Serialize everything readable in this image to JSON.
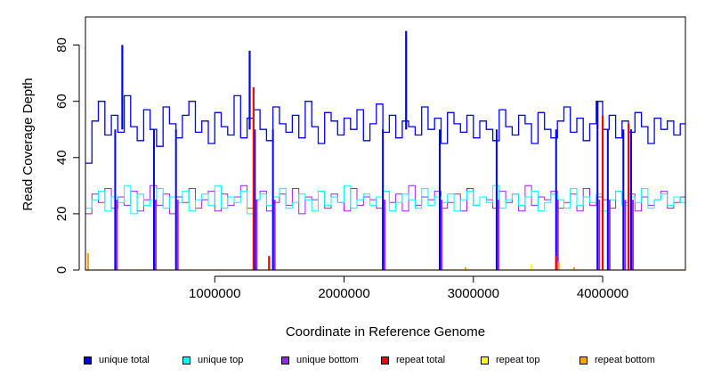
{
  "chart_data": {
    "type": "line",
    "title": "",
    "xlabel": "Coordinate in Reference Genome",
    "ylabel": "Read Coverage Depth",
    "xlim": [
      0,
      4640000
    ],
    "ylim": [
      0,
      90
    ],
    "x_ticks": [
      1000000,
      2000000,
      3000000,
      4000000
    ],
    "x_tick_labels": [
      "1000000",
      "2000000",
      "3000000",
      "4000000"
    ],
    "y_ticks": [
      0,
      20,
      40,
      60,
      80
    ],
    "y_tick_labels": [
      "0",
      "20",
      "40",
      "60",
      "80"
    ],
    "grid": false,
    "legend_position": "bottom",
    "series": [
      {
        "name": "unique total",
        "color": "#0000ff",
        "baseline": 50,
        "x": [
          0,
          50000,
          100000,
          150000,
          200000,
          250000,
          300000,
          350000,
          400000,
          450000,
          500000,
          550000,
          600000,
          650000,
          700000,
          750000,
          800000,
          850000,
          900000,
          950000,
          1000000,
          1050000,
          1100000,
          1150000,
          1200000,
          1250000,
          1300000,
          1350000,
          1400000,
          1450000,
          1500000,
          1550000,
          1600000,
          1650000,
          1700000,
          1750000,
          1800000,
          1850000,
          1900000,
          1950000,
          2000000,
          2050000,
          2100000,
          2150000,
          2200000,
          2250000,
          2300000,
          2350000,
          2400000,
          2450000,
          2500000,
          2550000,
          2600000,
          2650000,
          2700000,
          2750000,
          2800000,
          2850000,
          2900000,
          2950000,
          3000000,
          3050000,
          3100000,
          3150000,
          3200000,
          3250000,
          3300000,
          3350000,
          3400000,
          3450000,
          3500000,
          3550000,
          3600000,
          3650000,
          3700000,
          3750000,
          3800000,
          3850000,
          3900000,
          3950000,
          4000000,
          4050000,
          4100000,
          4150000,
          4200000,
          4250000,
          4300000,
          4350000,
          4400000,
          4450000,
          4500000,
          4550000,
          4600000
        ],
        "values": [
          38,
          53,
          60,
          48,
          55,
          49,
          62,
          51,
          46,
          57,
          50,
          44,
          58,
          52,
          47,
          55,
          60,
          49,
          53,
          45,
          56,
          51,
          48,
          62,
          47,
          54,
          57,
          50,
          46,
          58,
          52,
          49,
          55,
          47,
          60,
          51,
          45,
          56,
          53,
          48,
          54,
          50,
          57,
          46,
          52,
          59,
          49,
          55,
          47,
          53,
          51,
          48,
          58,
          50,
          54,
          45,
          56,
          52,
          49,
          55,
          47,
          53,
          50,
          46,
          57,
          51,
          48,
          55,
          52,
          45,
          56,
          50,
          47,
          53,
          58,
          49,
          54,
          46,
          52,
          60,
          50,
          55,
          47,
          53,
          49,
          56,
          51,
          45,
          54,
          50,
          53,
          48,
          52
        ],
        "spikes": [
          [
            285000,
            80
          ],
          [
            1270000,
            78
          ],
          [
            2480000,
            85
          ],
          [
            3960000,
            60
          ]
        ]
      },
      {
        "name": "unique top",
        "color": "#00ffff",
        "baseline": 25,
        "values": [
          22,
          25,
          28,
          21,
          26,
          24,
          30,
          20,
          27,
          23,
          25,
          29,
          22,
          26,
          24,
          28,
          21,
          25,
          27,
          23,
          30,
          22,
          26,
          24,
          28,
          20,
          25,
          27,
          23,
          26,
          29,
          22,
          24,
          27,
          25,
          21,
          28,
          23,
          26,
          24,
          30,
          22,
          25,
          27,
          23,
          26,
          28,
          21,
          24,
          27,
          25,
          22,
          29,
          23,
          26,
          24,
          27,
          21,
          25,
          28,
          23,
          26,
          24,
          30,
          22,
          25,
          27,
          23,
          26,
          28,
          21,
          24,
          27,
          25,
          22,
          29,
          23,
          26,
          24,
          27,
          21,
          25,
          28,
          23,
          26,
          24,
          29,
          22,
          25,
          27,
          23,
          26,
          24
        ]
      },
      {
        "name": "unique bottom",
        "color": "#a020f0",
        "baseline": 25,
        "values": [
          20,
          27,
          24,
          29,
          22,
          26,
          23,
          28,
          21,
          25,
          30,
          23,
          27,
          20,
          26,
          24,
          29,
          22,
          25,
          28,
          21,
          27,
          23,
          26,
          30,
          22,
          25,
          28,
          21,
          24,
          27,
          23,
          29,
          20,
          26,
          25,
          28,
          22,
          27,
          24,
          21,
          29,
          23,
          26,
          25,
          22,
          28,
          24,
          27,
          21,
          30,
          23,
          26,
          25,
          28,
          22,
          24,
          27,
          21,
          29,
          23,
          26,
          25,
          22,
          28,
          24,
          27,
          21,
          30,
          23,
          26,
          25,
          28,
          22,
          24,
          27,
          21,
          29,
          23,
          26,
          25,
          22,
          28,
          24,
          27,
          21,
          26,
          23,
          25,
          28,
          22,
          24,
          26
        ]
      },
      {
        "name": "repeat total",
        "color": "#ff0000",
        "spikes": [
          [
            1300000,
            65
          ],
          [
            1420000,
            5
          ],
          [
            3640000,
            5
          ],
          [
            4000000,
            55
          ],
          [
            4200000,
            52
          ]
        ]
      },
      {
        "name": "repeat top",
        "color": "#ffff00",
        "spikes": [
          [
            3450000,
            2
          ]
        ]
      },
      {
        "name": "repeat bottom",
        "color": "#ffa500",
        "spikes": [
          [
            20000,
            6
          ],
          [
            2940000,
            1
          ],
          [
            3660000,
            3
          ],
          [
            3780000,
            1
          ]
        ]
      }
    ],
    "dropouts": [
      230000,
      530000,
      700000,
      1310000,
      1450000,
      2300000,
      2740000,
      3180000,
      3640000,
      3960000,
      4040000,
      4160000,
      4220000
    ],
    "annotations": []
  }
}
